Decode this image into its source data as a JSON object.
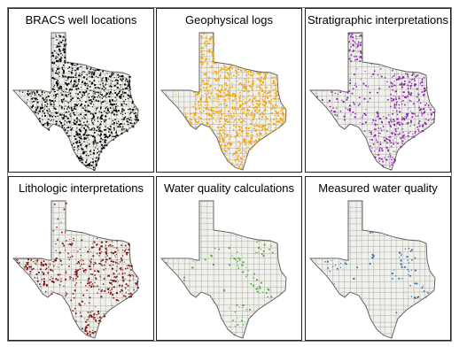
{
  "panels": [
    {
      "title": "BRACS well locations",
      "color": "#000000",
      "density": 1.0,
      "pattern": "all"
    },
    {
      "title": "Geophysical logs",
      "color": "#f5a300",
      "density": 0.95,
      "pattern": "all-but-west"
    },
    {
      "title": "Stratigraphic interpretations",
      "color": "#8a1ea8",
      "density": 0.7,
      "pattern": "north-east-coast"
    },
    {
      "title": "Lithologic interpretations",
      "color": "#7a0f0f",
      "density": 0.75,
      "pattern": "west-central-coast"
    },
    {
      "title": "Water quality calculations",
      "color": "#3aa61e",
      "density": 0.35,
      "pattern": "bands"
    },
    {
      "title": "Measured water quality",
      "color": "#1f5fb0",
      "density": 0.3,
      "pattern": "patches"
    }
  ],
  "basemap": {
    "fill": "#f1f1ec",
    "county_line": "#8c8c8c",
    "outline": "#555555"
  }
}
